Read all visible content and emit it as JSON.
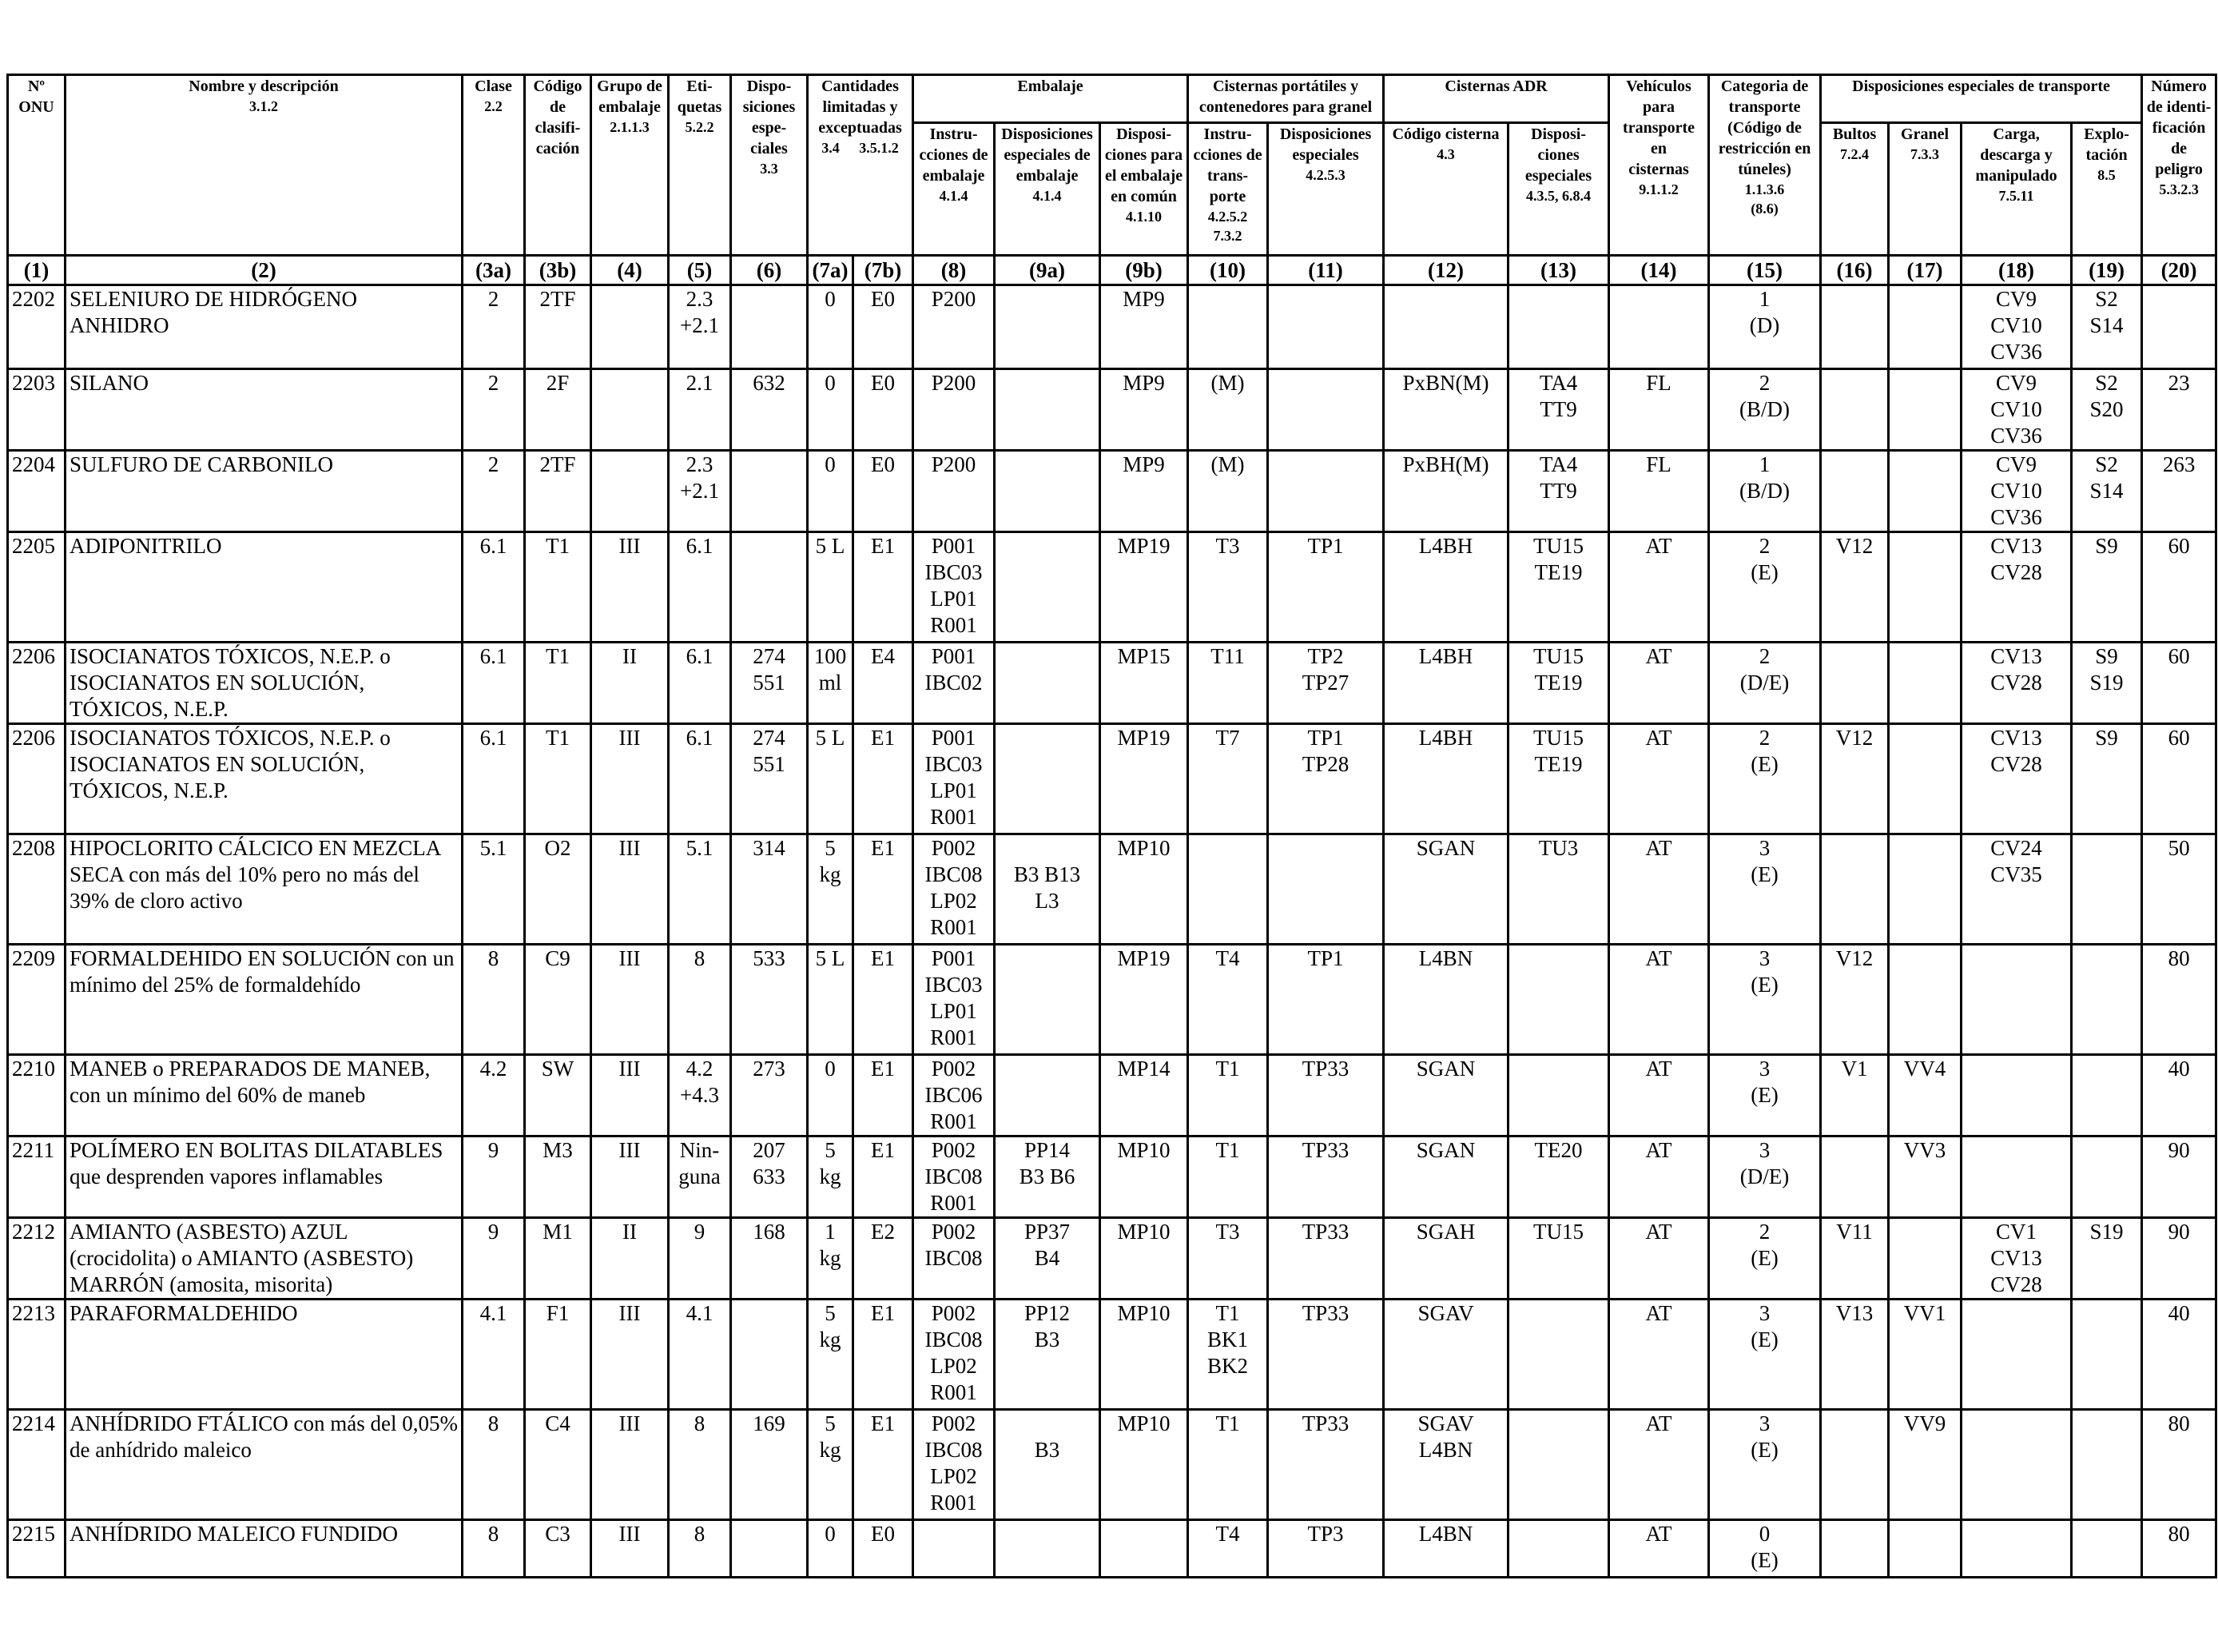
{
  "header": {
    "un_no": "Nº\nONU",
    "name": "Nombre y descripción",
    "name_ref": "3.1.2",
    "class": "Clase",
    "class_ref": "2.2",
    "class_code": "Código\nde clasifi-\ncación",
    "packing_group": "Grupo de\nembalaje",
    "packing_group_ref": "2.1.1.3",
    "labels": "Eti-\nquetas",
    "labels_ref": "5.2.2",
    "special_provisions": "Dispo-\nsiciones\nespe-\nciales",
    "special_provisions_ref": "3.3",
    "limited_qty": "Cantidades\nlimitadas y\nexceptuadas",
    "limited_ref_a": "3.4",
    "limited_ref_b": "3.5.1.2",
    "packaging": "Embalaje",
    "pack_instr": "Instru-\ncciones de\nembalaje",
    "pack_instr_ref": "4.1.4",
    "pack_special": "Disposiciones\nespeciales de\nembalaje",
    "pack_special_ref": "4.1.4",
    "mixed_packing": "Disposi-\nciones para\nel embalaje\nen común",
    "mixed_packing_ref": "4.1.10",
    "portable_tanks": "Cisternas portátiles y\ncontenedores para granel",
    "pt_instr": "Instru-\ncciones de\ntrans-\nporte",
    "pt_instr_ref": "4.2.5.2\n7.3.2",
    "pt_special": "Disposiciones\nespeciales",
    "pt_special_ref": "4.2.5.3",
    "adr_tanks": "Cisternas ADR",
    "tank_code": "Código cisterna",
    "tank_code_ref": "4.3",
    "tank_special": "Disposi-\nciones\nespeciales",
    "tank_special_ref": "4.3.5, 6.8.4",
    "vehicle": "Vehículos\npara\ntransporte en\ncisternas",
    "vehicle_ref": "9.1.1.2",
    "transport_cat": "Categoria de\ntransporte\n(Código de\nrestricción en\ntúneles)",
    "transport_cat_ref": "1.1.3.6\n(8.6)",
    "special_transport": "Disposiciones especiales de transporte",
    "packages": "Bultos",
    "packages_ref": "7.2.4",
    "bulk": "Granel",
    "bulk_ref": "7.3.3",
    "loading": "Carga,\ndescarga y\nmanipulado",
    "loading_ref": "7.5.11",
    "operation": "Explo-\ntación",
    "operation_ref": "8.5",
    "hazard_id": "Número\nde identi-\nficación\nde peligro",
    "hazard_id_ref": "5.3.2.3"
  },
  "column_numbers": [
    "(1)",
    "(2)",
    "(3a)",
    "(3b)",
    "(4)",
    "(5)",
    "(6)",
    "(7a)",
    "(7b)",
    "(8)",
    "(9a)",
    "(9b)",
    "(10)",
    "(11)",
    "(12)",
    "(13)",
    "(14)",
    "(15)",
    "(16)",
    "(17)",
    "(18)",
    "(19)",
    "(20)"
  ],
  "rows": [
    {
      "un": "2202",
      "name": "SELENIURO DE HIDRÓGENO ANHIDRO",
      "cls": "2",
      "code": "2TF",
      "pg": "",
      "lab": "2.3\n+2.1",
      "sp": "",
      "lq": "0",
      "eq": "E0",
      "pi": "P200",
      "ps": "",
      "mp": "MP9",
      "ti": "",
      "ts": "",
      "tc": "",
      "tsp": "",
      "veh": "",
      "cat": "1\n(D)",
      "bul": "",
      "gra": "",
      "cv": "CV9\nCV10\nCV36",
      "s": "S2\nS14",
      "hin": ""
    },
    {
      "un": "2203",
      "name": "SILANO",
      "cls": "2",
      "code": "2F",
      "pg": "",
      "lab": "2.1",
      "sp": "632",
      "lq": "0",
      "eq": "E0",
      "pi": "P200",
      "ps": "",
      "mp": "MP9",
      "ti": "(M)",
      "ts": "",
      "tc": "PxBN(M)",
      "tsp": "TA4\nTT9",
      "veh": "FL",
      "cat": "2\n(B/D)",
      "bul": "",
      "gra": "",
      "cv": "CV9\nCV10\nCV36",
      "s": "S2\nS20",
      "hin": "23"
    },
    {
      "un": "2204",
      "name": "SULFURO DE CARBONILO",
      "cls": "2",
      "code": "2TF",
      "pg": "",
      "lab": "2.3\n+2.1",
      "sp": "",
      "lq": "0",
      "eq": "E0",
      "pi": "P200",
      "ps": "",
      "mp": "MP9",
      "ti": "(M)",
      "ts": "",
      "tc": "PxBH(M)",
      "tsp": "TA4\nTT9",
      "veh": "FL",
      "cat": "1\n(B/D)",
      "bul": "",
      "gra": "",
      "cv": "CV9\nCV10\nCV36",
      "s": "S2\nS14",
      "hin": "263"
    },
    {
      "un": "2205",
      "name": "ADIPONITRILO",
      "cls": "6.1",
      "code": "T1",
      "pg": "III",
      "lab": "6.1",
      "sp": "",
      "lq": "5 L",
      "eq": "E1",
      "pi": "P001\nIBC03\nLP01\nR001",
      "ps": "",
      "mp": "MP19",
      "ti": "T3",
      "ts": "TP1",
      "tc": "L4BH",
      "tsp": "TU15\nTE19",
      "veh": "AT",
      "cat": "2\n(E)",
      "bul": "V12",
      "gra": "",
      "cv": "CV13\nCV28",
      "s": "S9",
      "hin": "60"
    },
    {
      "un": "2206",
      "name": "ISOCIANATOS TÓXICOS, N.E.P. o ISOCIANATOS EN SOLUCIÓN, TÓXICOS, N.E.P.",
      "cls": "6.1",
      "code": "T1",
      "pg": "II",
      "lab": "6.1",
      "sp": "274\n551",
      "lq": "100\nml",
      "eq": "E4",
      "pi": "P001\nIBC02",
      "ps": "",
      "mp": "MP15",
      "ti": "T11",
      "ts": "TP2\nTP27",
      "tc": "L4BH",
      "tsp": "TU15\nTE19",
      "veh": "AT",
      "cat": "2\n(D/E)",
      "bul": "",
      "gra": "",
      "cv": "CV13\nCV28",
      "s": "S9\nS19",
      "hin": "60"
    },
    {
      "un": "2206",
      "name": "ISOCIANATOS TÓXICOS, N.E.P. o ISOCIANATOS EN SOLUCIÓN, TÓXICOS, N.E.P.",
      "cls": "6.1",
      "code": "T1",
      "pg": "III",
      "lab": "6.1",
      "sp": "274\n551",
      "lq": "5 L",
      "eq": "E1",
      "pi": "P001\nIBC03\nLP01\nR001",
      "ps": "",
      "mp": "MP19",
      "ti": "T7",
      "ts": "TP1\nTP28",
      "tc": "L4BH",
      "tsp": "TU15\nTE19",
      "veh": "AT",
      "cat": "2\n(E)",
      "bul": "V12",
      "gra": "",
      "cv": "CV13\nCV28",
      "s": "S9",
      "hin": "60"
    },
    {
      "un": "2208",
      "name": "HIPOCLORITO CÁLCICO EN MEZCLA SECA con más del 10% pero no más del 39% de cloro activo",
      "cls": "5.1",
      "code": "O2",
      "pg": "III",
      "lab": "5.1",
      "sp": "314",
      "lq": "5 kg",
      "eq": "E1",
      "pi": "P002\nIBC08\nLP02\nR001",
      "ps": "\nB3 B13\nL3",
      "mp": "MP10",
      "ti": "",
      "ts": "",
      "tc": "SGAN",
      "tsp": "TU3",
      "veh": "AT",
      "cat": "3\n(E)",
      "bul": "",
      "gra": "",
      "cv": "CV24\nCV35",
      "s": "",
      "hin": "50"
    },
    {
      "un": "2209",
      "name": "FORMALDEHIDO EN SOLUCIÓN con un mínimo del 25% de formaldehído",
      "cls": "8",
      "code": "C9",
      "pg": "III",
      "lab": "8",
      "sp": "533",
      "lq": "5 L",
      "eq": "E1",
      "pi": "P001\nIBC03\nLP01\nR001",
      "ps": "",
      "mp": "MP19",
      "ti": "T4",
      "ts": "TP1",
      "tc": "L4BN",
      "tsp": "",
      "veh": "AT",
      "cat": "3\n(E)",
      "bul": "V12",
      "gra": "",
      "cv": "",
      "s": "",
      "hin": "80"
    },
    {
      "un": "2210",
      "name": "MANEB o PREPARADOS DE MANEB, con un mínimo del 60% de maneb",
      "cls": "4.2",
      "code": "SW",
      "pg": "III",
      "lab": "4.2\n+4.3",
      "sp": "273",
      "lq": "0",
      "eq": "E1",
      "pi": "P002\nIBC06\nR001",
      "ps": "",
      "mp": "MP14",
      "ti": "T1",
      "ts": "TP33",
      "tc": "SGAN",
      "tsp": "",
      "veh": "AT",
      "cat": "3\n(E)",
      "bul": "V1",
      "gra": "VV4",
      "cv": "",
      "s": "",
      "hin": "40"
    },
    {
      "un": "2211",
      "name": "POLÍMERO EN BOLITAS DILATABLES que desprenden vapores inflamables",
      "cls": "9",
      "code": "M3",
      "pg": "III",
      "lab": "Nin-\nguna",
      "sp": "207\n633",
      "lq": "5 kg",
      "eq": "E1",
      "pi": "P002\nIBC08\nR001",
      "ps": "PP14\nB3 B6",
      "mp": "MP10",
      "ti": "T1",
      "ts": "TP33",
      "tc": "SGAN",
      "tsp": "TE20",
      "veh": "AT",
      "cat": "3\n(D/E)",
      "bul": "",
      "gra": "VV3",
      "cv": "",
      "s": "",
      "hin": "90"
    },
    {
      "un": "2212",
      "name": "AMIANTO (ASBESTO) AZUL (crocidolita) o AMIANTO (ASBESTO) MARRÓN (amosita, misorita)",
      "cls": "9",
      "code": "M1",
      "pg": "II",
      "lab": "9",
      "sp": "168",
      "lq": "1 kg",
      "eq": "E2",
      "pi": "P002\nIBC08",
      "ps": "PP37\nB4",
      "mp": "MP10",
      "ti": "T3",
      "ts": "TP33",
      "tc": "SGAH",
      "tsp": "TU15",
      "veh": "AT",
      "cat": "2\n(E)",
      "bul": "V11",
      "gra": "",
      "cv": "CV1\nCV13\nCV28",
      "s": "S19",
      "hin": "90"
    },
    {
      "un": "2213",
      "name": "PARAFORMALDEHIDO",
      "cls": "4.1",
      "code": "F1",
      "pg": "III",
      "lab": "4.1",
      "sp": "",
      "lq": "5 kg",
      "eq": "E1",
      "pi": "P002\nIBC08\nLP02\nR001",
      "ps": "PP12\nB3",
      "mp": "MP10",
      "ti": "T1\nBK1\nBK2",
      "ts": "TP33",
      "tc": "SGAV",
      "tsp": "",
      "veh": "AT",
      "cat": "3\n(E)",
      "bul": "V13",
      "gra": "VV1",
      "cv": "",
      "s": "",
      "hin": "40"
    },
    {
      "un": "2214",
      "name": "ANHÍDRIDO FTÁLICO con más del 0,05% de anhídrido maleico",
      "cls": "8",
      "code": "C4",
      "pg": "III",
      "lab": "8",
      "sp": "169",
      "lq": "5 kg",
      "eq": "E1",
      "pi": "P002\nIBC08\nLP02\nR001",
      "ps": "\nB3",
      "mp": "MP10",
      "ti": "T1",
      "ts": "TP33",
      "tc": "SGAV\nL4BN",
      "tsp": "",
      "veh": "AT",
      "cat": "3\n(E)",
      "bul": "",
      "gra": "VV9",
      "cv": "",
      "s": "",
      "hin": "80"
    },
    {
      "un": "2215",
      "name": "ANHÍDRIDO MALEICO FUNDIDO",
      "cls": "8",
      "code": "C3",
      "pg": "III",
      "lab": "8",
      "sp": "",
      "lq": "0",
      "eq": "E0",
      "pi": "",
      "ps": "",
      "mp": "",
      "ti": "T4",
      "ts": "TP3",
      "tc": "L4BN",
      "tsp": "",
      "veh": "AT",
      "cat": "0\n(E)",
      "bul": "",
      "gra": "",
      "cv": "",
      "s": "",
      "hin": "80"
    }
  ]
}
